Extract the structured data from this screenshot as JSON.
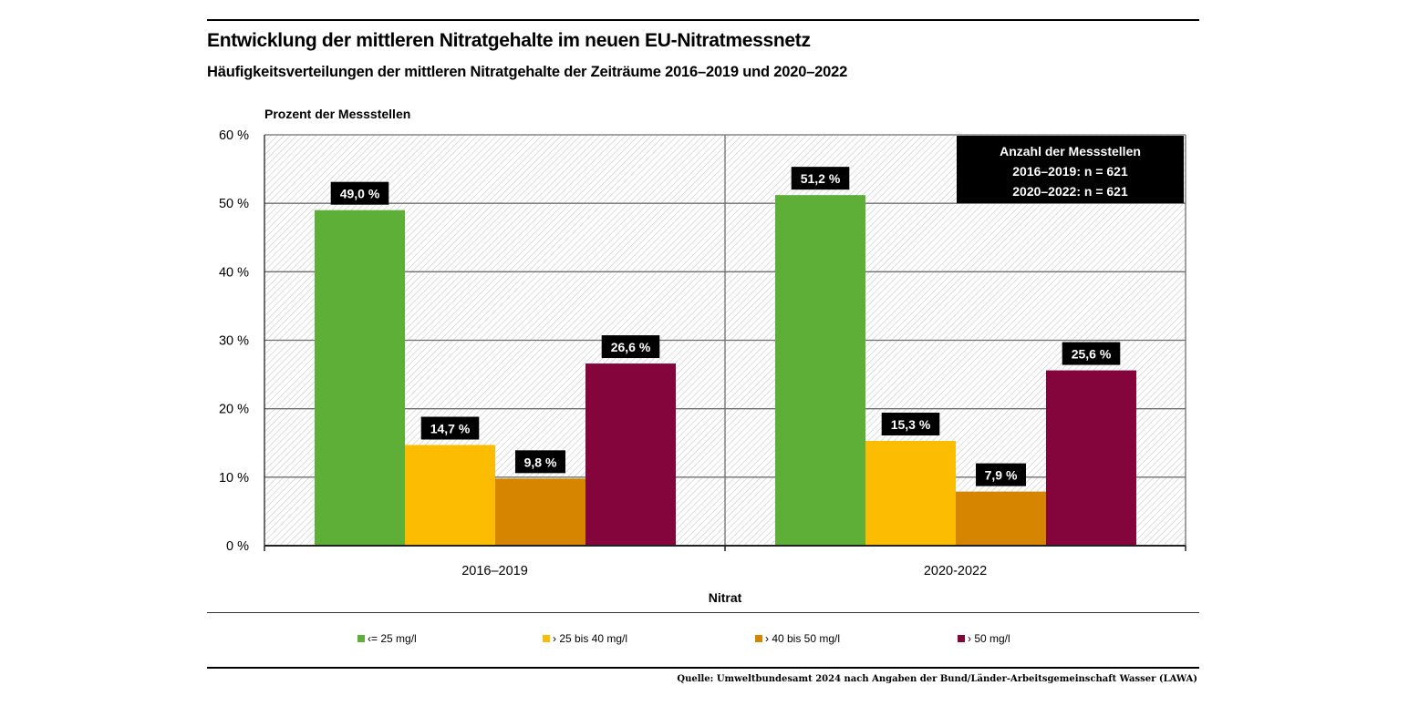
{
  "header": {
    "title": "Entwicklung der mittleren Nitratgehalte im neuen EU-Nitratmessnetz",
    "subtitle": "Häufigkeitsverteilungen der mittleren Nitratgehalte der Zeiträume 2016–2019 und 2020–2022"
  },
  "chart_data": {
    "type": "bar",
    "title": "Entwicklung der mittleren Nitratgehalte im neuen EU-Nitratmessnetz",
    "subtitle": "Häufigkeitsverteilungen der mittleren Nitratgehalte der Zeiträume 2016–2019 und 2020–2022",
    "ylabel": "Prozent der Messstellen",
    "xlabel": "Nitrat",
    "categories": [
      "2016–2019",
      "2020-2022"
    ],
    "ylim": [
      0,
      60
    ],
    "yticks": [
      0,
      10,
      20,
      30,
      40,
      50,
      60
    ],
    "ytick_labels": [
      "0 %",
      "10 %",
      "20 %",
      "30 %",
      "40 %",
      "50 %",
      "60 %"
    ],
    "grid": true,
    "legend_position": "bottom",
    "series": [
      {
        "name": "<= 25 mg/l",
        "color": "#5eaf37",
        "values": [
          49.0,
          51.2
        ],
        "labels": [
          "49,0 %",
          "51,2 %"
        ]
      },
      {
        "name": "> 25 bis 40 mg/l",
        "color": "#fbbc02",
        "values": [
          14.7,
          15.3
        ],
        "labels": [
          "14,7 %",
          "15,3 %"
        ]
      },
      {
        "name": "> 40 bis 50 mg/l",
        "color": "#d68500",
        "values": [
          9.8,
          7.9
        ],
        "labels": [
          "9,8 %",
          "7,9 %"
        ]
      },
      {
        "name": "> 50 mg/l",
        "color": "#83053c",
        "values": [
          26.6,
          25.6
        ],
        "labels": [
          "26,6 %",
          "25,6 %"
        ]
      }
    ],
    "annotation": {
      "lines": [
        "Anzahl der Messstellen",
        "2016–2019: n = 621",
        "2020–2022: n = 621"
      ],
      "position": "top-right"
    }
  },
  "legend": {
    "items": [
      {
        "label": "‹= 25 mg/l",
        "color": "#5eaf37"
      },
      {
        "label": "› 25 bis 40 mg/l",
        "color": "#fbbc02"
      },
      {
        "label": "› 40 bis 50 mg/l",
        "color": "#d68500"
      },
      {
        "label": "› 50 mg/l",
        "color": "#83053c"
      }
    ]
  },
  "footer": {
    "source": "Quelle: Umweltbundesamt 2024 nach Angaben der Bund/Länder-Arbeitsgemeinschaft Wasser (LAWA)"
  }
}
